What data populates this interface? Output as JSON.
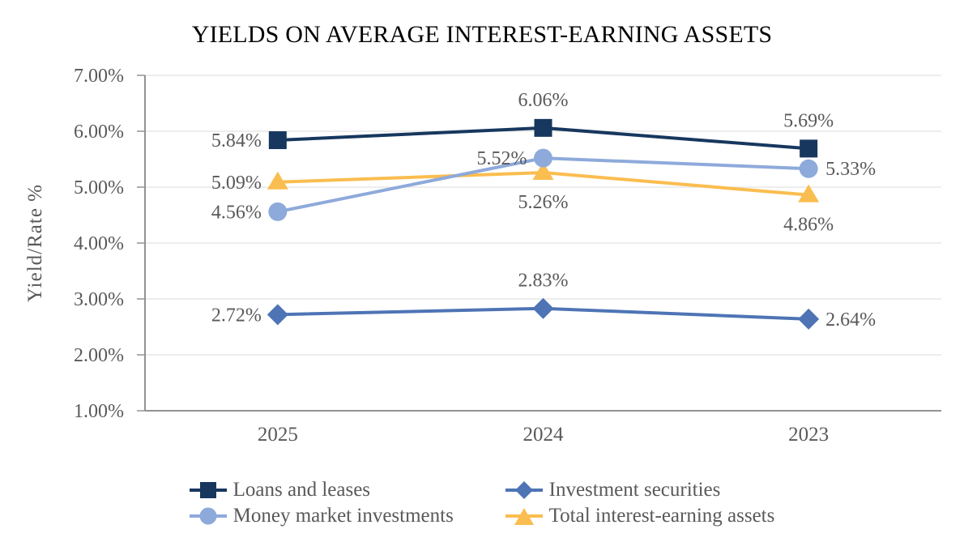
{
  "chart_data": {
    "type": "line",
    "title": "YIELDS ON AVERAGE INTEREST-EARNING ASSETS",
    "ylabel": "Yield/Rate %",
    "xlabel": "",
    "categories": [
      "2025",
      "2024",
      "2023"
    ],
    "y_ticks": [
      "7.00%",
      "6.00%",
      "5.00%",
      "4.00%",
      "3.00%",
      "2.00%",
      "1.00%"
    ],
    "ylim": [
      1.0,
      7.0
    ],
    "grid": true,
    "legend_position": "bottom",
    "series": [
      {
        "name": "Loans and leases",
        "marker": "square",
        "color": "#17375E",
        "values": [
          5.84,
          6.06,
          5.69
        ],
        "labels": [
          "5.84%",
          "6.06%",
          "5.69%"
        ],
        "label_positions": [
          "left",
          "above",
          "above"
        ]
      },
      {
        "name": "Investment securities",
        "marker": "diamond",
        "color": "#4E74B5",
        "values": [
          2.72,
          2.83,
          2.64
        ],
        "labels": [
          "2.72%",
          "2.83%",
          "2.64%"
        ],
        "label_positions": [
          "left",
          "above",
          "right"
        ]
      },
      {
        "name": "Money market investments",
        "marker": "circle",
        "color": "#8EAADB",
        "values": [
          4.56,
          5.52,
          5.33
        ],
        "labels": [
          "4.56%",
          "5.52%",
          "5.33%"
        ],
        "label_positions": [
          "left",
          "left",
          "right"
        ]
      },
      {
        "name": "Total interest-earning assets",
        "marker": "triangle",
        "color": "#FABD4F",
        "values": [
          5.09,
          5.26,
          4.86
        ],
        "labels": [
          "5.09%",
          "5.26%",
          "4.86%"
        ],
        "label_positions": [
          "left",
          "below",
          "below"
        ]
      }
    ],
    "colors": {
      "grid": "#E2E2E2",
      "axis": "#929292",
      "text": "#595959",
      "title_text": "#000000"
    }
  }
}
